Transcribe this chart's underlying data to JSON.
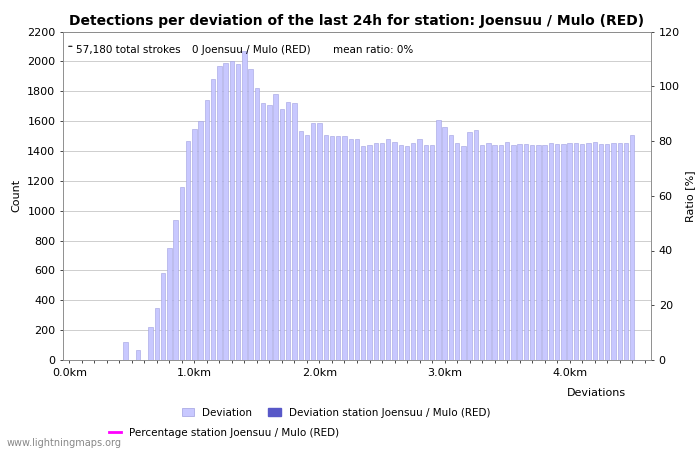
{
  "title": "Detections per deviation of the last 24h for station: Joensuu / Mulo (RED)",
  "subtitle_total": "57,180 total strokes",
  "subtitle_station": "0 Joensuu / Mulo (RED)",
  "subtitle_ratio": "mean ratio: 0%",
  "ylabel_left": "Count",
  "ylabel_right": "Ratio [%]",
  "xlabel": "Deviations",
  "ylim_left": [
    0,
    2200
  ],
  "ylim_right": [
    0,
    120
  ],
  "yticks_left": [
    0,
    200,
    400,
    600,
    800,
    1000,
    1200,
    1400,
    1600,
    1800,
    2000,
    2200
  ],
  "yticks_right": [
    0,
    20,
    40,
    60,
    80,
    100,
    120
  ],
  "xtick_labels": [
    "0.0km",
    "1.0km",
    "2.0km",
    "3.0km",
    "4.0km"
  ],
  "xtick_positions": [
    0.0,
    1.0,
    2.0,
    3.0,
    4.0
  ],
  "bar_color_light": "#c8c8ff",
  "bar_color_dark": "#5858c8",
  "bar_edge_color": "#a0a0e0",
  "grid_color": "#bbbbbb",
  "background_color": "#ffffff",
  "title_fontsize": 10,
  "axis_fontsize": 8,
  "tick_fontsize": 8,
  "watermark": "www.lightningmaps.org",
  "bar_width": 0.035,
  "bar_positions": [
    0.05,
    0.1,
    0.15,
    0.2,
    0.25,
    0.3,
    0.35,
    0.4,
    0.45,
    0.5,
    0.55,
    0.6,
    0.65,
    0.7,
    0.75,
    0.8,
    0.85,
    0.9,
    0.95,
    1.0,
    1.05,
    1.1,
    1.15,
    1.2,
    1.25,
    1.3,
    1.35,
    1.4,
    1.45,
    1.5,
    1.55,
    1.6,
    1.65,
    1.7,
    1.75,
    1.8,
    1.85,
    1.9,
    1.95,
    2.0,
    2.05,
    2.1,
    2.15,
    2.2,
    2.25,
    2.3,
    2.35,
    2.4,
    2.45,
    2.5,
    2.55,
    2.6,
    2.65,
    2.7,
    2.75,
    2.8,
    2.85,
    2.9,
    2.95,
    3.0,
    3.05,
    3.1,
    3.15,
    3.2,
    3.25,
    3.3,
    3.35,
    3.4,
    3.45,
    3.5,
    3.55,
    3.6,
    3.65,
    3.7,
    3.75,
    3.8,
    3.85,
    3.9,
    3.95,
    4.0,
    4.05,
    4.1,
    4.15,
    4.2,
    4.25,
    4.3,
    4.35,
    4.4,
    4.45,
    4.5
  ],
  "bar_values": [
    0,
    0,
    2,
    1,
    1,
    3,
    2,
    2,
    120,
    1,
    65,
    1,
    220,
    350,
    580,
    750,
    940,
    1160,
    1465,
    1550,
    1600,
    1740,
    1880,
    1970,
    1990,
    2000,
    1980,
    2070,
    1950,
    1820,
    1720,
    1710,
    1780,
    1680,
    1730,
    1720,
    1535,
    1505,
    1590,
    1590,
    1505,
    1500,
    1500,
    1500,
    1480,
    1480,
    1430,
    1440,
    1450,
    1455,
    1480,
    1460,
    1440,
    1430,
    1450,
    1480,
    1440,
    1440,
    1610,
    1560,
    1510,
    1455,
    1430,
    1530,
    1540,
    1440,
    1455,
    1440,
    1440,
    1460,
    1440,
    1445,
    1445,
    1440,
    1440,
    1440,
    1450,
    1445,
    1445,
    1455,
    1455,
    1445,
    1455,
    1460,
    1445,
    1445,
    1455,
    1455,
    1455,
    1510
  ],
  "xlim": [
    -0.05,
    4.65
  ],
  "legend_items": [
    "Deviation",
    "Deviation station Joensuu / Mulo (RED)",
    "Percentage station Joensuu / Mulo (RED)"
  ]
}
